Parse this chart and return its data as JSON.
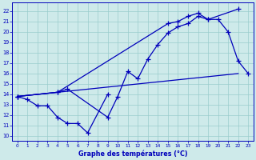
{
  "title": "Graphe des températures (°C)",
  "ylim": [
    9.5,
    22.8
  ],
  "xlim": [
    -0.5,
    23.5
  ],
  "yticks": [
    10,
    11,
    12,
    13,
    14,
    15,
    16,
    17,
    18,
    19,
    20,
    21,
    22
  ],
  "xticks": [
    0,
    1,
    2,
    3,
    4,
    5,
    6,
    7,
    8,
    9,
    10,
    11,
    12,
    13,
    14,
    15,
    16,
    17,
    18,
    19,
    20,
    21,
    22,
    23
  ],
  "bg_color": "#ceeaea",
  "line_color": "#0000bb",
  "grid_color": "#99cccc",
  "fig_bg": "#ceeaea",
  "line_min": {
    "x": [
      0,
      1,
      2,
      3,
      4,
      5,
      6,
      7,
      9
    ],
    "y": [
      13.8,
      13.5,
      12.9,
      12.9,
      11.8,
      11.2,
      11.2,
      10.3,
      14.0
    ]
  },
  "line_temp": {
    "x": [
      0,
      4,
      5,
      9,
      10,
      11,
      12,
      13,
      14,
      15,
      16,
      17,
      18,
      19,
      20,
      21,
      22,
      23
    ],
    "y": [
      13.8,
      14.2,
      14.5,
      11.8,
      13.8,
      16.2,
      15.5,
      17.4,
      18.8,
      19.9,
      20.5,
      20.8,
      21.5,
      21.2,
      21.2,
      20.0,
      17.2,
      16.0
    ]
  },
  "line_diag": {
    "x": [
      0,
      22
    ],
    "y": [
      13.8,
      16.0
    ]
  },
  "line_upper": {
    "x": [
      0,
      4,
      15,
      16,
      17,
      18,
      19,
      22
    ],
    "y": [
      13.8,
      14.2,
      20.8,
      21.0,
      21.5,
      21.8,
      21.2,
      22.2
    ]
  }
}
